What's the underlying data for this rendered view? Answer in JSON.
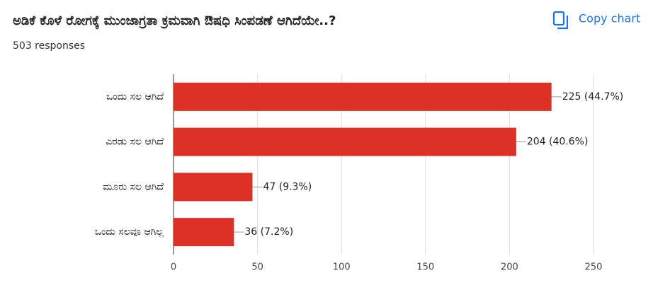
{
  "chart_data": {
    "type": "bar",
    "orientation": "horizontal",
    "title": "ಅಡಿಕೆ ಕೊಳೆ ರೋಗಕ್ಕೆ ಮುಂಜಾಗ್ರತಾ ಕ್ರಮವಾಗಿ ಔಷಧಿ ಸಿಂಪಡಣೆ  ಆಗಿದೆಯೇ..?",
    "subtitle": "503 responses",
    "categories": [
      "ಒಂದು ಸಲ ಆಗಿದೆ",
      "ಎರಡು ಸಲ ಆಗಿದೆ",
      "ಮೂರು ಸಲ ಆಗಿದೆ",
      "ಒಂದು ಸಲವೂ ಆಗಿಲ್ಲ"
    ],
    "values": [
      225,
      204,
      47,
      36
    ],
    "value_labels": [
      "225 (44.7%)",
      "204 (40.6%)",
      "47 (9.3%)",
      "36 (7.2%)"
    ],
    "color": "#dc3124",
    "xlim": [
      0,
      250
    ],
    "xticks": [
      0,
      50,
      100,
      150,
      200,
      250
    ],
    "grid": true
  },
  "toolbar": {
    "copy_button": "Copy chart"
  }
}
